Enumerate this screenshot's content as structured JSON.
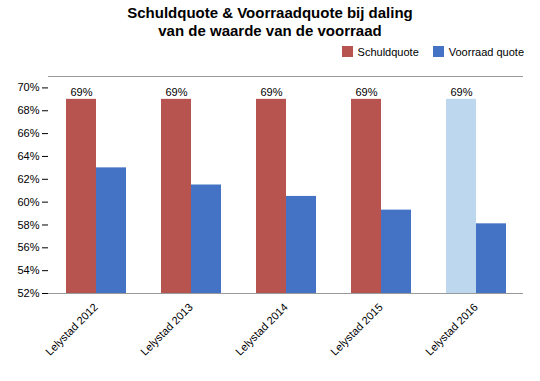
{
  "chart_data": {
    "type": "bar",
    "title": "Schuldquote & Voorraadquote bij daling\nvan de waarde van de voorraad",
    "categories": [
      "Lelystad 2012",
      "Lelystad 2013",
      "Lelystad 2014",
      "Lelystad 2015",
      "Lelystad 2016"
    ],
    "series": [
      {
        "name": "Schuldquote",
        "color": "#B85450",
        "colors": [
          "#B85450",
          "#B85450",
          "#B85450",
          "#B85450",
          "#BDD7EE"
        ],
        "values": [
          0.69,
          0.69,
          0.69,
          0.69,
          0.69
        ],
        "data_labels": true,
        "value_labels": [
          "69%",
          "69%",
          "69%",
          "69%",
          "69%"
        ]
      },
      {
        "name": "Voorraad quote",
        "color": "#4472C4",
        "values": [
          0.63,
          0.615,
          0.605,
          0.593,
          0.581
        ]
      }
    ],
    "ylim": [
      0.52,
      0.71
    ],
    "yticks": [
      {
        "value": 0.52,
        "label": "52%"
      },
      {
        "value": 0.54,
        "label": "54%"
      },
      {
        "value": 0.56,
        "label": "56%"
      },
      {
        "value": 0.58,
        "label": "58%"
      },
      {
        "value": 0.6,
        "label": "60%"
      },
      {
        "value": 0.62,
        "label": "62%"
      },
      {
        "value": 0.64,
        "label": "64%"
      },
      {
        "value": 0.66,
        "label": "66%"
      },
      {
        "value": 0.68,
        "label": "68%"
      },
      {
        "value": 0.7,
        "label": "70%"
      }
    ],
    "grid": false,
    "legend": "upper right"
  }
}
